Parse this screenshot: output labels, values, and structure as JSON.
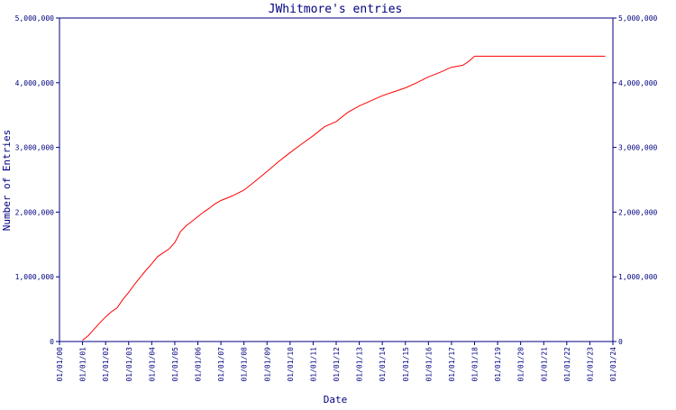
{
  "chart_data": {
    "type": "line",
    "title": "JWhitmore's entries",
    "xlabel": "Date",
    "ylabel": "Number of Entries",
    "x_ticks": [
      "01/01/00",
      "01/01/01",
      "01/01/02",
      "01/01/03",
      "01/01/04",
      "01/01/05",
      "01/01/06",
      "01/01/07",
      "01/01/08",
      "01/01/09",
      "01/01/10",
      "01/01/11",
      "01/01/12",
      "01/01/13",
      "01/01/14",
      "01/01/15",
      "01/01/16",
      "01/01/17",
      "01/01/18",
      "01/01/19",
      "01/01/20",
      "01/01/21",
      "01/01/22",
      "01/01/23",
      "01/01/24"
    ],
    "y_ticks": [
      "0",
      "1,000,000",
      "2,000,000",
      "3,000,000",
      "4,000,000",
      "5,000,000"
    ],
    "y_tick_values": [
      0,
      1000000,
      2000000,
      3000000,
      4000000,
      5000000
    ],
    "ylim": [
      0,
      5000000
    ],
    "xlim": [
      "2000-01-01",
      "2024-01-01"
    ],
    "grid": false,
    "series_color": "#ff0000",
    "axis_color": "#000080",
    "series": [
      {
        "x": [
          "2001-01-01",
          "2001-04-01",
          "2001-07-01",
          "2001-10-01",
          "2002-01-01",
          "2002-04-01",
          "2002-07-01",
          "2002-10-01",
          "2003-01-01",
          "2003-04-01",
          "2003-07-01",
          "2003-10-01",
          "2004-01-01",
          "2004-04-01",
          "2004-07-01",
          "2004-10-01",
          "2005-01-01",
          "2005-04-01",
          "2005-07-01",
          "2005-10-01",
          "2006-01-01",
          "2006-04-01",
          "2006-07-01",
          "2006-10-01",
          "2007-01-01",
          "2007-07-01",
          "2008-01-01",
          "2008-07-01",
          "2009-01-01",
          "2009-07-01",
          "2010-01-01",
          "2010-07-01",
          "2011-01-01",
          "2011-07-01",
          "2012-01-01",
          "2012-07-01",
          "2013-01-01",
          "2013-07-01",
          "2014-01-01",
          "2014-07-01",
          "2015-01-01",
          "2015-07-01",
          "2016-01-01",
          "2016-07-01",
          "2017-01-01",
          "2017-07-01",
          "2017-10-01",
          "2018-01-01",
          "2019-01-01",
          "2020-01-01",
          "2021-01-01",
          "2022-01-01",
          "2023-01-01",
          "2023-09-01"
        ],
        "y": [
          20000,
          90000,
          190000,
          290000,
          380000,
          460000,
          520000,
          650000,
          760000,
          880000,
          990000,
          1100000,
          1200000,
          1310000,
          1370000,
          1430000,
          1530000,
          1700000,
          1790000,
          1860000,
          1930000,
          2000000,
          2060000,
          2130000,
          2180000,
          2250000,
          2340000,
          2480000,
          2630000,
          2780000,
          2920000,
          3050000,
          3180000,
          3320000,
          3400000,
          3540000,
          3640000,
          3720000,
          3800000,
          3860000,
          3920000,
          4000000,
          4090000,
          4160000,
          4240000,
          4270000,
          4330000,
          4410000,
          4410000,
          4410000,
          4410000,
          4410000,
          4410000,
          4410000
        ]
      }
    ]
  }
}
